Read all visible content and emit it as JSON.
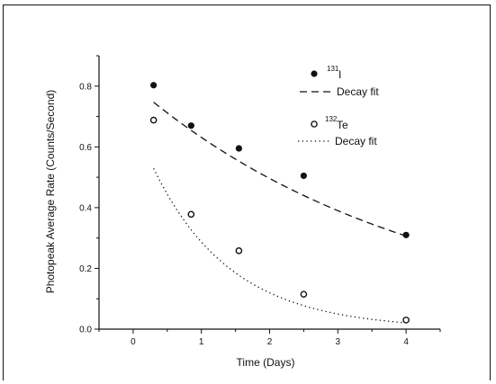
{
  "chart_data": {
    "type": "scatter",
    "xlabel": "Time (Days)",
    "ylabel": "Photopeak Average Rate (Counts/Second)",
    "xlim": [
      -0.5,
      4.5
    ],
    "ylim": [
      0.0,
      0.9
    ],
    "x_ticks": [
      0,
      1,
      2,
      3,
      4
    ],
    "x_tick_labels": [
      "0",
      "1",
      "2",
      "3",
      "4"
    ],
    "y_ticks": [
      0.0,
      0.2,
      0.4,
      0.6,
      0.8
    ],
    "y_tick_labels": [
      "0.0",
      "0.2",
      "0.4",
      "0.6",
      "0.8"
    ],
    "grid": false,
    "legend_position": "top-right",
    "series": [
      {
        "name": "131I",
        "isotope_mass": "131",
        "isotope_symbol": "I",
        "marker": "filled-circle",
        "x": [
          0.3,
          0.85,
          1.55,
          2.5,
          4.0
        ],
        "y": [
          0.803,
          0.67,
          0.595,
          0.505,
          0.31
        ]
      },
      {
        "name": "132Te",
        "isotope_mass": "132",
        "isotope_symbol": "Te",
        "marker": "open-circle",
        "x": [
          0.3,
          0.85,
          1.55,
          2.5,
          4.0
        ],
        "y": [
          0.688,
          0.378,
          0.258,
          0.115,
          0.03
        ]
      }
    ],
    "fits": [
      {
        "name": "Decay fit",
        "for_series": "131I",
        "style": "dashed",
        "x_range": [
          0.3,
          4.0
        ],
        "a": 0.803,
        "k": 0.2407
      },
      {
        "name": "Decay fit",
        "for_series": "132Te",
        "style": "dotted",
        "x_range": [
          0.3,
          4.0
        ],
        "a": 0.688,
        "k": 0.8745
      }
    ]
  },
  "colors": {
    "ink": "#111111",
    "background": "#ffffff"
  }
}
